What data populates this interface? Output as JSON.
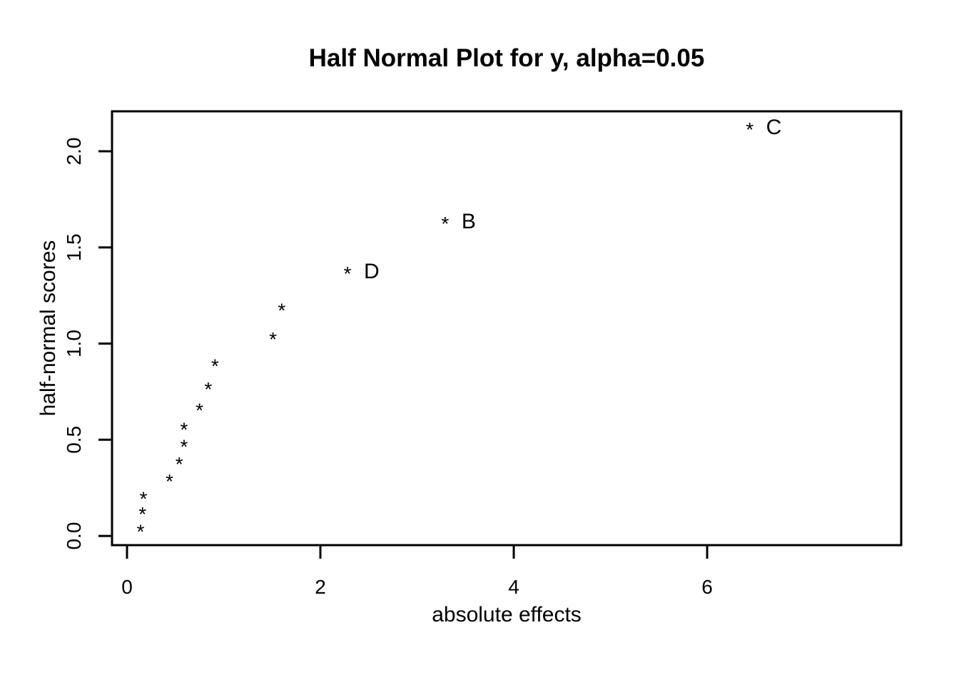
{
  "figure": {
    "background": "#ffffff",
    "foreground": "#000000"
  },
  "chart_data": {
    "type": "scatter",
    "title": "Half Normal Plot for y, alpha=0.05",
    "xlabel": "absolute effects",
    "ylabel": "half-normal scores",
    "marker": "*",
    "grid": false,
    "legend": false,
    "xlim": [
      -0.155,
      8.007
    ],
    "ylim": [
      -0.048,
      2.208
    ],
    "xticks": [
      0,
      2,
      4,
      6
    ],
    "xtick_labels": [
      "0",
      "2",
      "4",
      "6"
    ],
    "yticks": [
      0.0,
      0.5,
      1.0,
      1.5,
      2.0
    ],
    "ytick_labels": [
      "0.0",
      "0.5",
      "1.0",
      "1.5",
      "2.0"
    ],
    "points": [
      {
        "x": 0.14,
        "y": 0.04
      },
      {
        "x": 0.16,
        "y": 0.13
      },
      {
        "x": 0.17,
        "y": 0.21
      },
      {
        "x": 0.44,
        "y": 0.3
      },
      {
        "x": 0.54,
        "y": 0.39
      },
      {
        "x": 0.59,
        "y": 0.48
      },
      {
        "x": 0.59,
        "y": 0.57
      },
      {
        "x": 0.75,
        "y": 0.67
      },
      {
        "x": 0.84,
        "y": 0.78
      },
      {
        "x": 0.91,
        "y": 0.9
      },
      {
        "x": 1.51,
        "y": 1.04
      },
      {
        "x": 1.6,
        "y": 1.19
      },
      {
        "x": 2.28,
        "y": 1.38,
        "label": "D"
      },
      {
        "x": 3.29,
        "y": 1.64,
        "label": "B"
      },
      {
        "x": 6.44,
        "y": 2.13,
        "label": "C"
      }
    ]
  }
}
